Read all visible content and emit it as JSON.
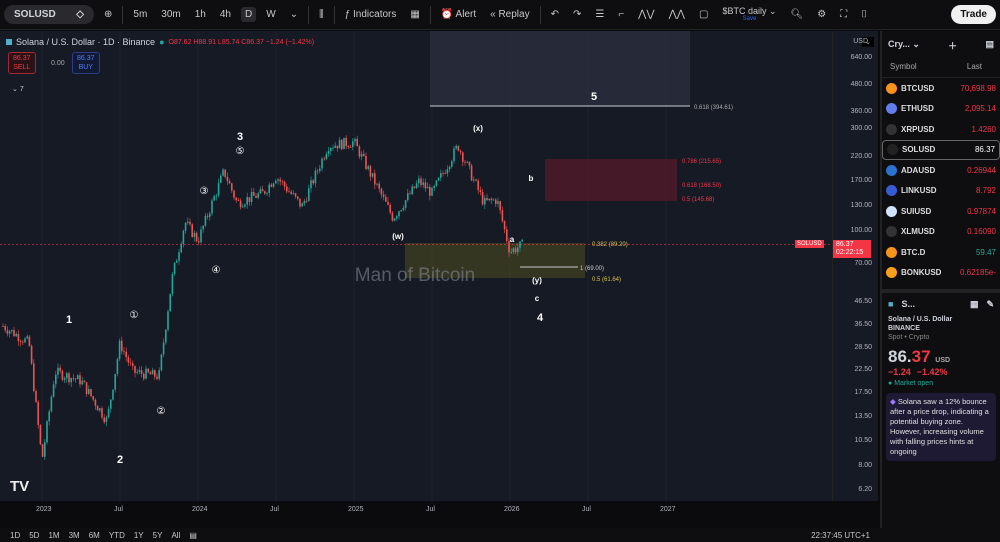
{
  "toolbar": {
    "symbol": "SOLUSD",
    "intervals": [
      "5m",
      "30m",
      "1h",
      "4h",
      "D",
      "W"
    ],
    "active_interval": "D",
    "indicators": "Indicators",
    "alert": "Alert",
    "replay": "Replay",
    "layout_name": "$BTC daily",
    "layout_sub": "Save",
    "trade": "Trade"
  },
  "legend": {
    "title": "Solana / U.S. Dollar · 1D · Binance",
    "ohlc": "O87.62 H88.91 L85.74 C86.37 −1.24 (−1.42%)",
    "sell_price": "86.37",
    "sell_label": "SELL",
    "spread": "0.00",
    "buy_price": "86.37",
    "buy_label": "BUY",
    "collapsed_count": "7"
  },
  "axis": {
    "currency": "USD",
    "ticks": [
      "640.00",
      "480.00",
      "360.00",
      "300.00",
      "220.00",
      "170.00",
      "130.00",
      "100.00",
      "70.00",
      "46.50",
      "36.50",
      "28.50",
      "22.50",
      "17.50",
      "13.50",
      "10.50",
      "8.00",
      "6.20"
    ],
    "current_label": "86.37",
    "countdown": "02:22:15",
    "crosshair_label": "SOLUSD"
  },
  "xaxis": [
    "2023",
    "Jul",
    "2024",
    "Jul",
    "2025",
    "Jul",
    "2026",
    "Jul",
    "2027"
  ],
  "chart_data": {
    "type": "candlestick",
    "scale": "log",
    "symbol": "SOLUSD",
    "last": 86.37,
    "path": [
      [
        "2022-10",
        36
      ],
      [
        "2022-12",
        30
      ],
      [
        "2023-01",
        8.5
      ],
      [
        "2023-02",
        22
      ],
      [
        "2023-04",
        20
      ],
      [
        "2023-06",
        13
      ],
      [
        "2023-07",
        30
      ],
      [
        "2023-08",
        22
      ],
      [
        "2023-10",
        21
      ],
      [
        "2023-11",
        60
      ],
      [
        "2023-12",
        110
      ],
      [
        "2024-01",
        90
      ],
      [
        "2024-03",
        190
      ],
      [
        "2024-04",
        135
      ],
      [
        "2024-06",
        150
      ],
      [
        "2024-07",
        180
      ],
      [
        "2024-09",
        130
      ],
      [
        "2024-11",
        250
      ],
      [
        "2025-01",
        260
      ],
      [
        "2025-04",
        115
      ],
      [
        "2025-06",
        170
      ],
      [
        "2025-07",
        150
      ],
      [
        "2025-09",
        250
      ],
      [
        "2025-11",
        135
      ],
      [
        "2025-12",
        140
      ],
      [
        "2026-01",
        80
      ],
      [
        "2026-02",
        86.37
      ]
    ]
  },
  "annotations": {
    "waves": [
      "1",
      "2",
      "3",
      "4",
      "5",
      "(w)",
      "(x)",
      "(y)",
      "a",
      "b",
      "c"
    ],
    "sub_waves": [
      "①",
      "②",
      "③",
      "④",
      "⑤"
    ],
    "fibs": [
      "0.618 (394.61)",
      "0.786 (215.65)",
      "0.618 (168.50)",
      "0.5 (145.68)",
      "0.382 (89.20)",
      "1 (69.00)",
      "0.5 (61.64)"
    ],
    "watermark": "Man of Bitcoin"
  },
  "ranges": [
    "1D",
    "5D",
    "1M",
    "3M",
    "6M",
    "YTD",
    "1Y",
    "5Y",
    "All"
  ],
  "clock": "22:37:45 UTC+1",
  "watchlist": {
    "title": "Cry...",
    "col_symbol": "Symbol",
    "col_last": "Last",
    "items": [
      {
        "symbol": "BTCUSD",
        "last": "70,698.98",
        "color": "#f7931a"
      },
      {
        "symbol": "ETHUSD",
        "last": "2,095.14",
        "color": "#627eea"
      },
      {
        "symbol": "XRPUSD",
        "last": "1.4260",
        "color": "#333"
      },
      {
        "symbol": "SOLUSD",
        "last": "86.37",
        "color": "#222"
      },
      {
        "symbol": "ADAUSD",
        "last": "0.26944",
        "color": "#2a71d0"
      },
      {
        "symbol": "LINKUSD",
        "last": "8.792",
        "color": "#375bd2"
      },
      {
        "symbol": "SUIUSD",
        "last": "0.97874",
        "color": "#cfe3ff"
      },
      {
        "symbol": "XLMUSD",
        "last": "0.16090",
        "color": "#333"
      },
      {
        "symbol": "BTC.D",
        "last": "59.47",
        "color": "#f7931a",
        "up": true
      },
      {
        "symbol": "BONKUSD",
        "last": "0.62185e-",
        "color": "#f8a01c"
      }
    ]
  },
  "details": {
    "short": "S...",
    "name": "Solana / U.S. Dollar",
    "exchange": "BINANCE",
    "type": "Spot • Crypto",
    "price_int": "86.",
    "price_dec": "37",
    "currency": "USD",
    "change": "−1.24",
    "change_pct": "−1.42%",
    "status": "Market open",
    "news": "Solana saw a 12% bounce after a price drop, indicating a potential buying zone. However, increasing volume with falling prices hints at ongoing"
  }
}
